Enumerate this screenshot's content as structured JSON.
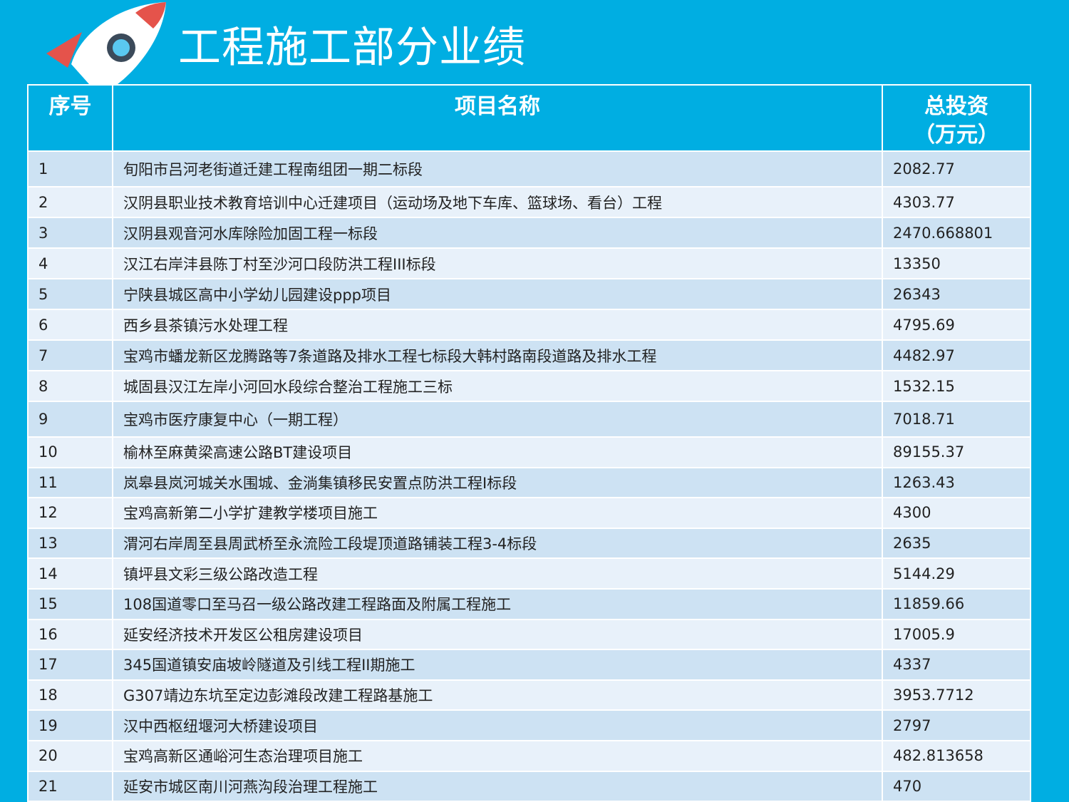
{
  "header": {
    "title": "工程施工部分业绩"
  },
  "table": {
    "columns": [
      [
        "序号"
      ],
      [
        "项目名称"
      ],
      [
        "总投资",
        "（万元）"
      ]
    ],
    "rows": [
      [
        "1",
        "旬阳市吕河老街道迁建工程南组团一期二标段",
        "2082.77"
      ],
      [
        "2",
        "汉阴县职业技术教育培训中心迁建项目（运动场及地下车库、篮球场、看台）工程",
        "4303.77"
      ],
      [
        "3",
        "汉阴县观音河水库除险加固工程一标段",
        "2470.668801"
      ],
      [
        "4",
        "汉江右岸沣县陈丁村至沙河口段防洪工程III标段",
        "13350"
      ],
      [
        "5",
        "宁陕县城区高中小学幼儿园建设ppp项目",
        "26343"
      ],
      [
        "6",
        "西乡县茶镇污水处理工程",
        "4795.69"
      ],
      [
        "7",
        "宝鸡市蟠龙新区龙腾路等7条道路及排水工程七标段大韩村路南段道路及排水工程",
        "4482.97"
      ],
      [
        "8",
        "城固县汉江左岸小河回水段综合整治工程施工三标",
        "1532.15"
      ],
      [
        "9",
        "宝鸡市医疗康复中心（一期工程）",
        "7018.71"
      ],
      [
        "10",
        "榆林至麻黄梁高速公路BT建设项目",
        "89155.37"
      ],
      [
        "11",
        "岚皋县岚河城关水围城、金淌集镇移民安置点防洪工程I标段",
        "1263.43"
      ],
      [
        "12",
        "宝鸡高新第二小学扩建教学楼项目施工",
        "4300"
      ],
      [
        "13",
        "渭河右岸周至县周武桥至永流险工段堤顶道路铺装工程3-4标段",
        "2635"
      ],
      [
        "14",
        "镇坪县文彩三级公路改造工程",
        "5144.29"
      ],
      [
        "15",
        "108国道零口至马召一级公路改建工程路面及附属工程施工",
        "11859.66"
      ],
      [
        "16",
        "延安经济技术开发区公租房建设项目",
        "17005.9"
      ],
      [
        "17",
        "345国道镇安庙坡岭隧道及引线工程II期施工",
        "4337"
      ],
      [
        "18",
        "G307靖边东坑至定边彭滩段改建工程路基施工",
        "3953.7712"
      ],
      [
        "19",
        "汉中西枢纽堰河大桥建设项目",
        "2797"
      ],
      [
        "20",
        "宝鸡高新区通峪河生态治理项目施工",
        "482.813658"
      ],
      [
        "21",
        "延安市城区南川河燕沟段治理工程施工",
        "470"
      ]
    ]
  }
}
